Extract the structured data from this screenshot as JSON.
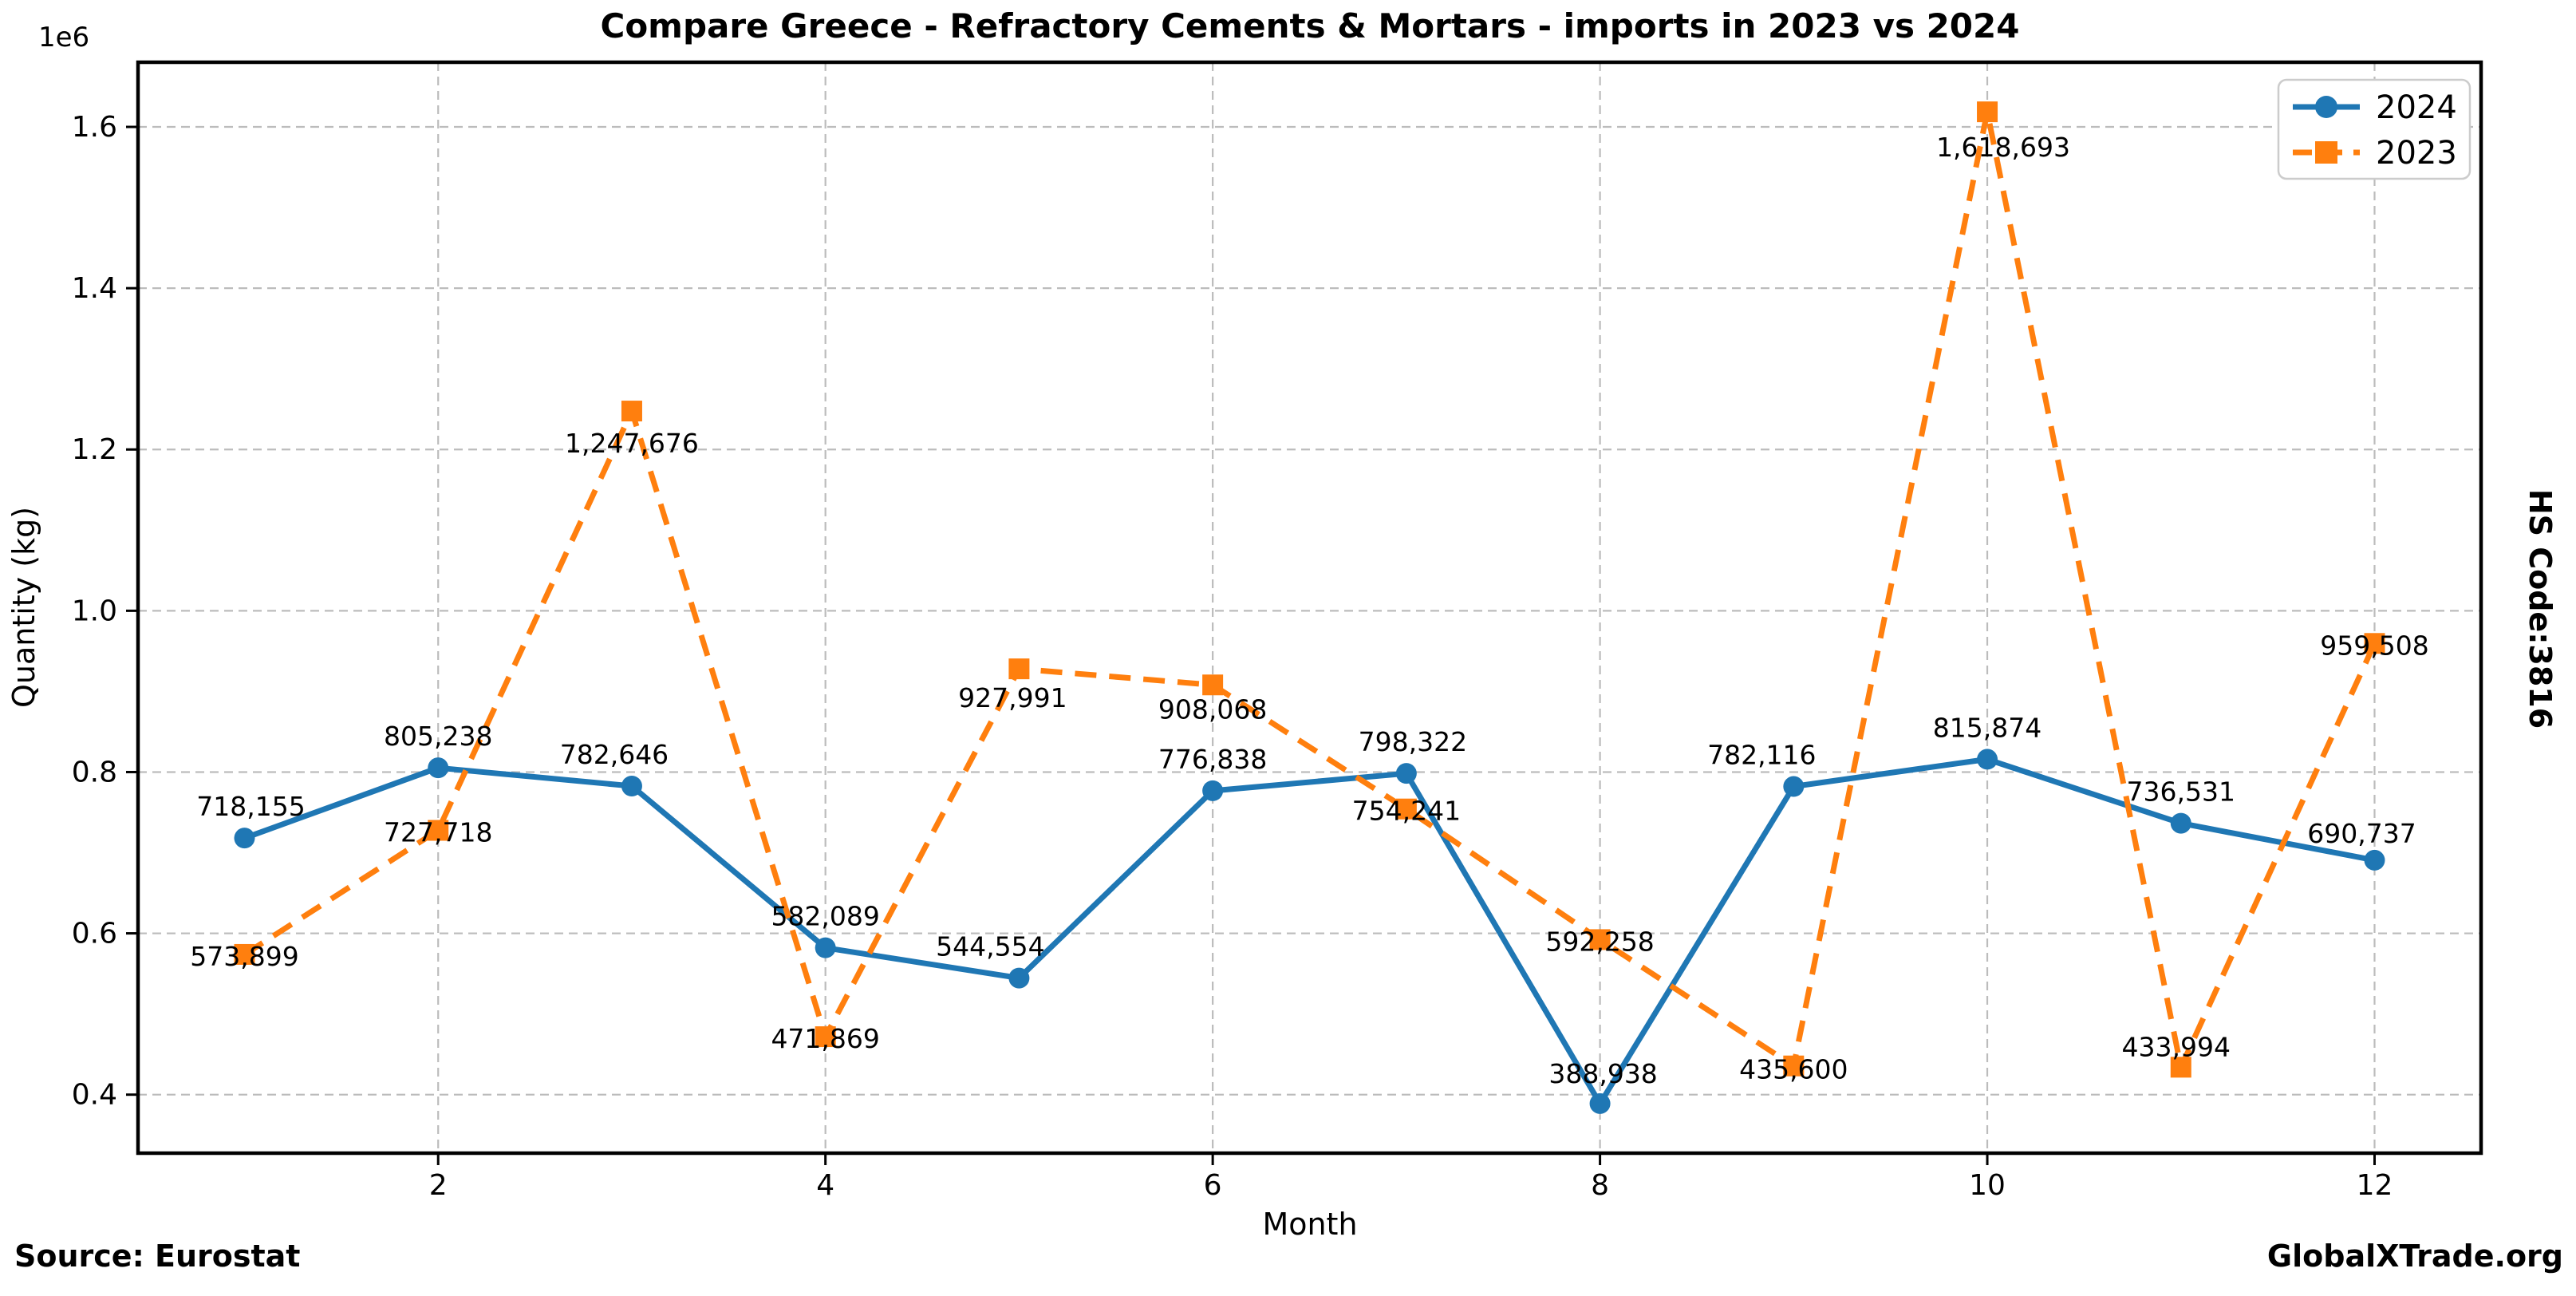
{
  "figure": {
    "title": "Compare Greece - Refractory Cements & Mortars - imports in 2023 vs 2024",
    "source": "Source: Eurostat",
    "branding": "GlobalXTrade.org",
    "right_label": "HS Code:3816",
    "y_offset_label": "1e6"
  },
  "legend": {
    "position": "upper right",
    "entries": [
      {
        "label": "2024",
        "color": "#1f77b4",
        "marker": "circle",
        "line": "solid"
      },
      {
        "label": "2023",
        "color": "#ff7f0e",
        "marker": "square",
        "line": "dashed"
      }
    ]
  },
  "chart_data": {
    "type": "line",
    "title": "Compare Greece - Refractory Cements & Mortars - imports in 2023 vs 2024",
    "xlabel": "Month",
    "ylabel": "Quantity (kg)",
    "x": [
      1,
      2,
      3,
      4,
      5,
      6,
      7,
      8,
      9,
      10,
      11,
      12
    ],
    "x_ticks": [
      2,
      4,
      6,
      8,
      10,
      12
    ],
    "x_tick_labels": [
      "2",
      "4",
      "6",
      "8",
      "10",
      "12"
    ],
    "y_ticks": [
      400000,
      600000,
      800000,
      1000000,
      1200000,
      1400000,
      1600000
    ],
    "y_tick_labels": [
      "0.4",
      "0.6",
      "0.8",
      "1.0",
      "1.2",
      "1.4",
      "1.6"
    ],
    "y_scale_note": "1e6",
    "xlim": [
      0.45,
      12.55
    ],
    "ylim": [
      327450,
      1680181
    ],
    "grid": true,
    "legend_position": "upper right",
    "series": [
      {
        "name": "2024",
        "color": "#1f77b4",
        "linestyle": "solid",
        "marker": "circle",
        "values": [
          718155,
          805238,
          782646,
          582089,
          544554,
          776838,
          798322,
          388938,
          782116,
          815874,
          736531,
          690737
        ],
        "labels": [
          "718,155",
          "805,238",
          "782,646",
          "582,089",
          "544,554",
          "776,838",
          "798,322",
          "388,938",
          "782,116",
          "815,874",
          "736,531",
          "690,737"
        ]
      },
      {
        "name": "2023",
        "color": "#ff7f0e",
        "linestyle": "dashed",
        "marker": "square",
        "values": [
          573899,
          727718,
          1247676,
          471869,
          927991,
          908068,
          754241,
          592258,
          435600,
          1618693,
          433994,
          959508
        ],
        "labels": [
          "573,899",
          "727,718",
          "1,247,676",
          "471,869",
          "927,991",
          "908,068",
          "754,241",
          "592,258",
          "435,600",
          "1,618,693",
          "433,994",
          "959,508"
        ]
      }
    ]
  }
}
